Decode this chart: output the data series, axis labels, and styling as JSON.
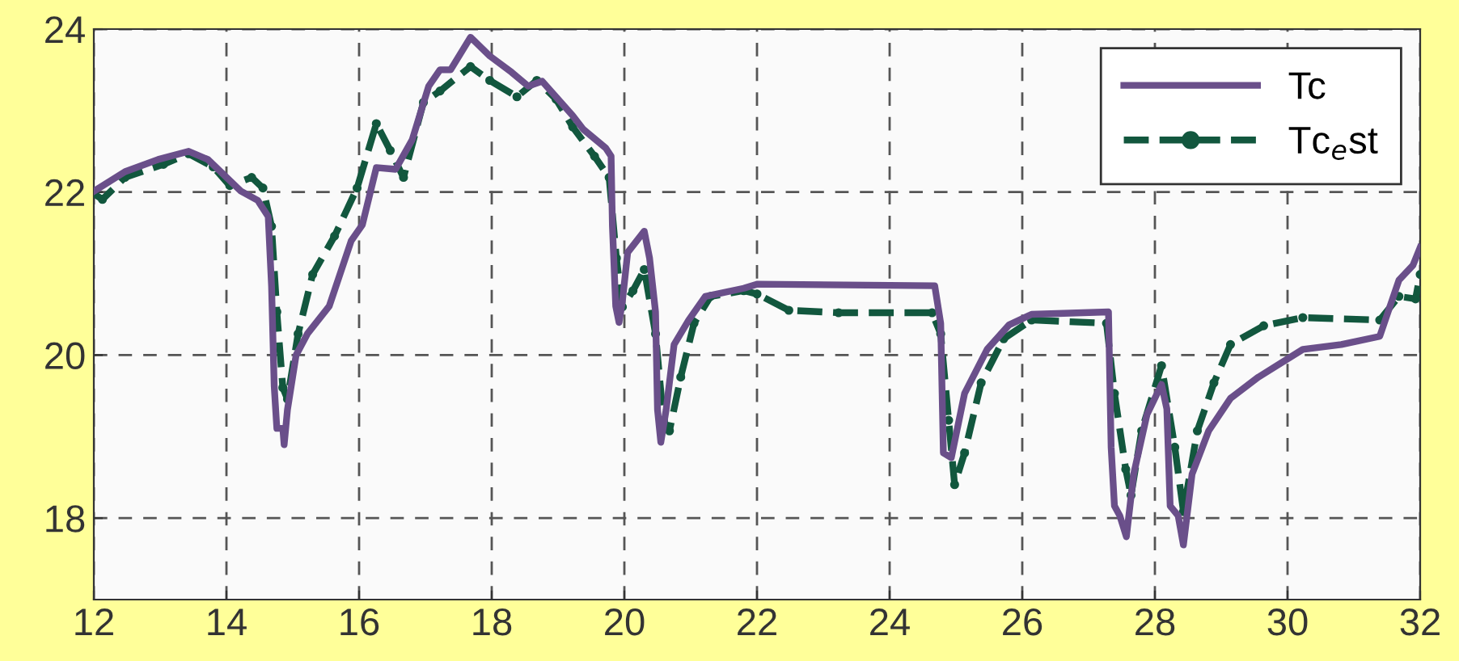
{
  "chart_data": {
    "type": "line",
    "xlim": [
      12,
      32
    ],
    "ylim": [
      17,
      24
    ],
    "xticks": [
      12,
      14,
      16,
      18,
      20,
      22,
      24,
      26,
      28,
      30,
      32
    ],
    "yticks": [
      18,
      20,
      22,
      24
    ],
    "grid": true,
    "legend": "top right",
    "series": [
      {
        "name": "Tc",
        "color": "#6a4f8a",
        "line_style": "solid",
        "marker": "none",
        "x": [
          12,
          12.47,
          12.97,
          13.43,
          13.72,
          14.22,
          14.47,
          14.63,
          14.68,
          14.72,
          14.76,
          14.85,
          14.87,
          14.92,
          15.05,
          15.22,
          15.55,
          15.88,
          16.05,
          16.26,
          16.55,
          16.8,
          17.05,
          17.22,
          17.38,
          17.68,
          17.97,
          18.3,
          18.55,
          18.76,
          19.22,
          19.38,
          19.72,
          19.8,
          19.82,
          19.87,
          19.92,
          19.97,
          20.05,
          20.3,
          20.38,
          20.47,
          20.5,
          20.55,
          20.63,
          20.75,
          20.97,
          21.22,
          21.8,
          22,
          24.68,
          24.77,
          24.81,
          24.93,
          25.13,
          25.47,
          25.8,
          26.14,
          27.3,
          27.34,
          27.39,
          27.47,
          27.57,
          27.68,
          27.88,
          28.1,
          28.18,
          28.23,
          28.35,
          28.43,
          28.56,
          28.81,
          29.14,
          29.56,
          30.23,
          30.81,
          31.39,
          31.68,
          31.89,
          32
        ],
        "values": [
          22.01,
          22.25,
          22.4,
          22.5,
          22.4,
          22.01,
          21.9,
          21.7,
          20.85,
          19.62,
          19.1,
          19.1,
          18.9,
          19.33,
          20.0,
          20.26,
          20.6,
          21.4,
          21.6,
          22.3,
          22.28,
          22.64,
          23.3,
          23.5,
          23.5,
          23.9,
          23.67,
          23.47,
          23.3,
          23.36,
          22.94,
          22.77,
          22.54,
          22.44,
          21.58,
          20.6,
          20.4,
          20.66,
          21.26,
          21.52,
          21.19,
          20.53,
          19.33,
          18.93,
          19.33,
          20.13,
          20.43,
          20.72,
          20.82,
          20.87,
          20.85,
          20.39,
          18.8,
          18.74,
          19.53,
          20.07,
          20.37,
          20.5,
          20.53,
          18.87,
          18.15,
          18.03,
          17.77,
          18.54,
          19.27,
          19.64,
          19.34,
          18.15,
          18.03,
          17.67,
          18.54,
          19.07,
          19.47,
          19.73,
          20.07,
          20.13,
          20.23,
          20.92,
          21.1,
          21.32
        ]
      },
      {
        "name": "Tc$_{e}$st",
        "color": "#12573e",
        "line_style": "dashed",
        "marker": "circle",
        "x": [
          12,
          12.13,
          12.47,
          13.05,
          13.43,
          13.8,
          14.05,
          14.38,
          14.55,
          14.68,
          14.76,
          14.85,
          14.92,
          15.08,
          15.3,
          15.63,
          15.97,
          16.26,
          16.47,
          16.67,
          16.97,
          17.22,
          17.68,
          17.97,
          18.38,
          18.68,
          18.97,
          19.22,
          19.55,
          19.77,
          19.88,
          19.97,
          20.13,
          20.3,
          20.47,
          20.59,
          20.68,
          20.85,
          21.05,
          21.3,
          21.8,
          22,
          22.48,
          23.23,
          24.64,
          24.77,
          24.89,
          24.98,
          25.13,
          25.38,
          25.72,
          26.14,
          27.27,
          27.39,
          27.56,
          27.64,
          27.8,
          28.1,
          28.3,
          28.43,
          28.64,
          28.89,
          29.14,
          29.64,
          30.23,
          31.39,
          31.68,
          31.93,
          32
        ],
        "values": [
          21.98,
          21.91,
          22.18,
          22.34,
          22.47,
          22.31,
          22.08,
          22.18,
          22.05,
          21.58,
          20.53,
          19.6,
          19.46,
          20.26,
          20.99,
          21.46,
          22.05,
          22.84,
          22.51,
          22.18,
          23.1,
          23.24,
          23.54,
          23.37,
          23.17,
          23.37,
          23.14,
          22.8,
          22.44,
          22.18,
          21.19,
          20.59,
          20.79,
          21.05,
          20.26,
          19.2,
          19.07,
          19.73,
          20.39,
          20.72,
          20.79,
          20.75,
          20.55,
          20.52,
          20.52,
          20.26,
          19.2,
          18.41,
          18.8,
          19.66,
          20.2,
          20.43,
          20.39,
          19.53,
          18.6,
          18.28,
          19.07,
          19.87,
          18.87,
          18.08,
          19.07,
          19.66,
          20.13,
          20.36,
          20.46,
          20.43,
          20.72,
          20.69,
          20.99
        ]
      }
    ]
  }
}
